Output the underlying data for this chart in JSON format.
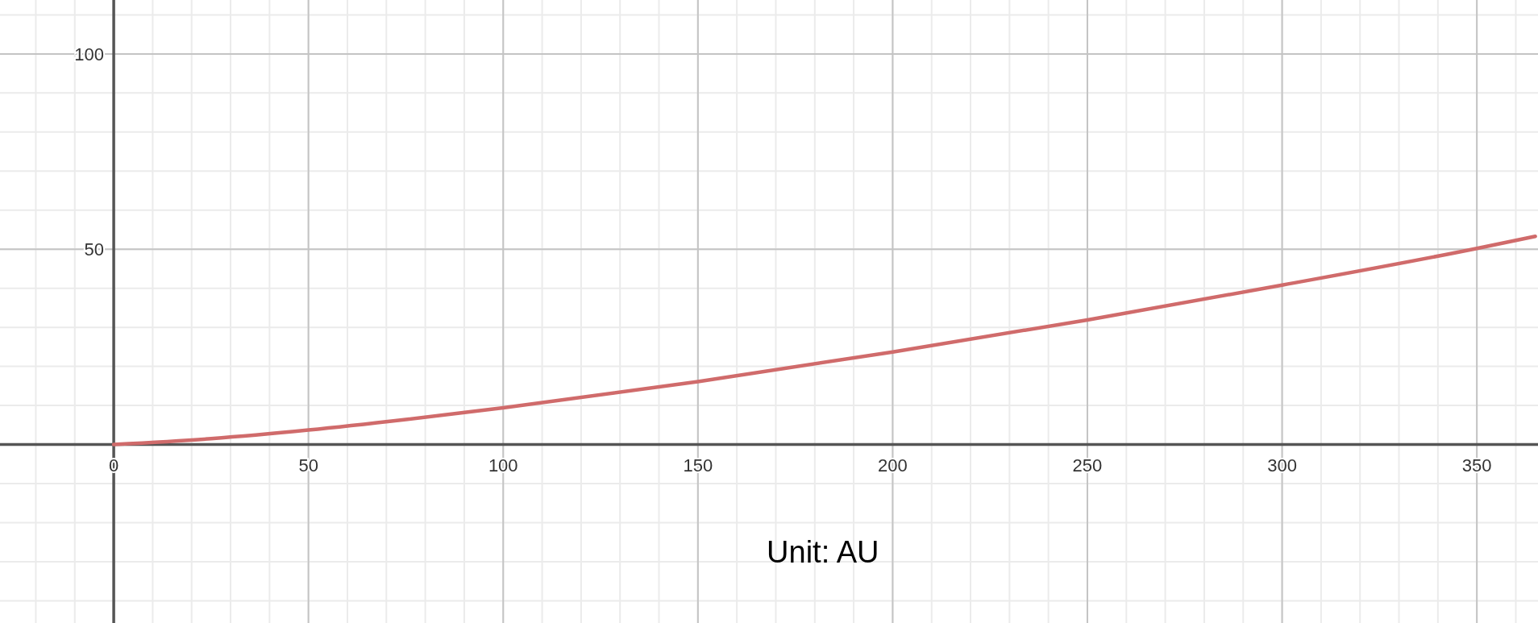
{
  "chart_data": {
    "type": "line",
    "x": [
      0,
      25,
      50,
      75,
      100,
      150,
      200,
      250,
      300,
      350,
      365
    ],
    "series": [
      {
        "color": "#d06b6b",
        "values": [
          0,
          1.5,
          3.7,
          6.4,
          9.4,
          16.1,
          23.7,
          31.9,
          40.8,
          50.2,
          53.3
        ]
      }
    ],
    "xlim": [
      -29.2,
      365.7
    ],
    "ylim": [
      -45.7,
      113.8
    ],
    "xticks": [
      0,
      50,
      100,
      150,
      200,
      250,
      300,
      350
    ],
    "yticks": [
      50,
      100
    ],
    "grid": true,
    "marker": "none",
    "line_style": "solid",
    "annotations": [
      "Unit: AU"
    ]
  }
}
